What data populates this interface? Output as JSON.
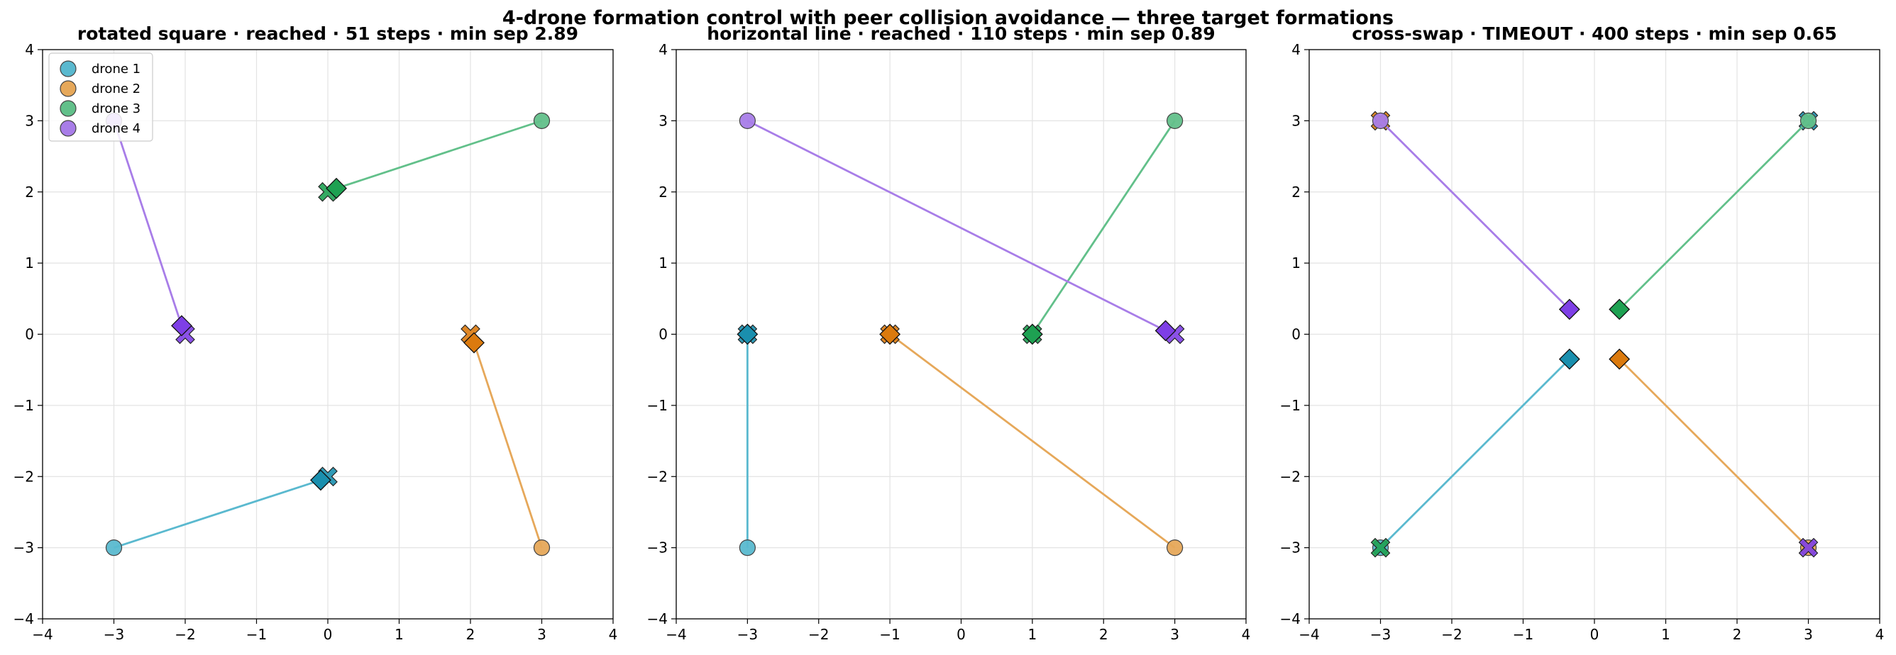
{
  "figure": {
    "title": "4-drone formation control with peer collision avoidance — three target formations"
  },
  "colors": {
    "drone1_line": "#5ab9cf",
    "drone2_line": "#e6a85a",
    "drone3_line": "#62c08a",
    "drone4_line": "#a87de8",
    "drone1_marker": "#1a8fae",
    "drone2_marker": "#db7a0e",
    "drone3_marker": "#1ea152",
    "drone4_marker": "#7e3fe6"
  },
  "chart_data": [
    {
      "type": "line",
      "title": "rotated square  ·  reached  ·  51 steps  ·  min sep 2.89",
      "xlim": [
        -4,
        4
      ],
      "ylim": [
        -4,
        4
      ],
      "xticks": [
        "−4",
        "−3",
        "−2",
        "−1",
        "0",
        "1",
        "2",
        "3",
        "4"
      ],
      "yticks": [
        "−4",
        "−3",
        "−2",
        "−1",
        "0",
        "1",
        "2",
        "3",
        "4"
      ],
      "grid": true,
      "legend": {
        "placement": "top-left",
        "entries": [
          "drone 1",
          "drone 2",
          "drone 3",
          "drone 4"
        ]
      },
      "series": [
        {
          "name": "drone 1",
          "start": [
            -3,
            -3
          ],
          "end": [
            -0.1,
            -2.05
          ],
          "target": [
            0,
            -2
          ]
        },
        {
          "name": "drone 2",
          "start": [
            3,
            -3
          ],
          "end": [
            2.05,
            -0.12
          ],
          "target": [
            2,
            0
          ]
        },
        {
          "name": "drone 3",
          "start": [
            3,
            3
          ],
          "end": [
            0.12,
            2.05
          ],
          "target": [
            0,
            2
          ]
        },
        {
          "name": "drone 4",
          "start": [
            -3,
            3
          ],
          "end": [
            -2.05,
            0.12
          ],
          "target": [
            -2,
            0
          ]
        }
      ]
    },
    {
      "type": "line",
      "title": "horizontal line  ·  reached  ·  110 steps  ·  min sep 0.89",
      "xlim": [
        -4,
        4
      ],
      "ylim": [
        -4,
        4
      ],
      "xticks": [
        "−4",
        "−3",
        "−2",
        "−1",
        "0",
        "1",
        "2",
        "3",
        "4"
      ],
      "yticks": [
        "−4",
        "−3",
        "−2",
        "−1",
        "0",
        "1",
        "2",
        "3",
        "4"
      ],
      "grid": true,
      "series": [
        {
          "name": "drone 1",
          "start": [
            -3,
            -3
          ],
          "end": [
            -3,
            0
          ],
          "target": [
            -3,
            0
          ]
        },
        {
          "name": "drone 2",
          "start": [
            3,
            -3
          ],
          "end": [
            -1,
            0
          ],
          "target": [
            -1,
            0
          ]
        },
        {
          "name": "drone 3",
          "start": [
            3,
            3
          ],
          "end": [
            1,
            0
          ],
          "target": [
            1,
            0
          ]
        },
        {
          "name": "drone 4",
          "start": [
            -3,
            3
          ],
          "end": [
            2.87,
            0.05
          ],
          "target": [
            3,
            0
          ]
        }
      ]
    },
    {
      "type": "line",
      "title": "cross-swap  ·  TIMEOUT  ·  400 steps  ·  min sep 0.65",
      "xlim": [
        -4,
        4
      ],
      "ylim": [
        -4,
        4
      ],
      "xticks": [
        "−4",
        "−3",
        "−2",
        "−1",
        "0",
        "1",
        "2",
        "3",
        "4"
      ],
      "yticks": [
        "−4",
        "−3",
        "−2",
        "−1",
        "0",
        "1",
        "2",
        "3",
        "4"
      ],
      "grid": true,
      "series": [
        {
          "name": "drone 1",
          "start": [
            -3,
            -3
          ],
          "end": [
            -0.35,
            -0.35
          ],
          "target": [
            3,
            3
          ]
        },
        {
          "name": "drone 2",
          "start": [
            3,
            -3
          ],
          "end": [
            0.35,
            -0.35
          ],
          "target": [
            -3,
            3
          ]
        },
        {
          "name": "drone 3",
          "start": [
            3,
            3
          ],
          "end": [
            0.35,
            0.35
          ],
          "target": [
            -3,
            -3
          ]
        },
        {
          "name": "drone 4",
          "start": [
            -3,
            3
          ],
          "end": [
            -0.35,
            0.35
          ],
          "target": [
            3,
            -3
          ]
        }
      ]
    }
  ]
}
